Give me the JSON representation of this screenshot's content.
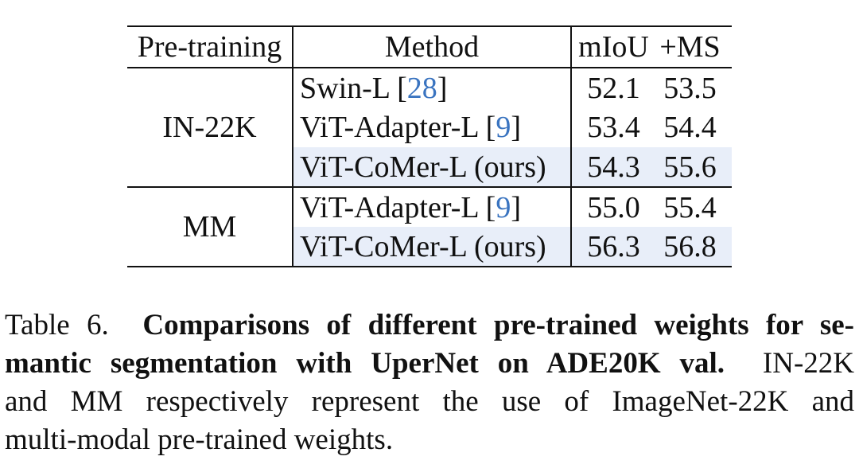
{
  "table": {
    "headers": {
      "pretraining": "Pre-training",
      "method": "Method",
      "miou": "mIoU",
      "ms": "+MS"
    },
    "groups": [
      {
        "pretraining": "IN-22K",
        "rows": [
          {
            "method": "Swin-L [",
            "ref": "28",
            "close": "]",
            "miou": "52.1",
            "ms": "53.5",
            "highlight": false
          },
          {
            "method": "ViT-Adapter-L [",
            "ref": "9",
            "close": "]",
            "miou": "53.4",
            "ms": "54.4",
            "highlight": false
          },
          {
            "method": "ViT-CoMer-L (ours)",
            "miou": "54.3",
            "ms": "55.6",
            "highlight": true
          }
        ]
      },
      {
        "pretraining": "MM",
        "rows": [
          {
            "method": "ViT-Adapter-L [",
            "ref": "9",
            "close": "]",
            "miou": "55.0",
            "ms": "55.4",
            "highlight": false
          },
          {
            "method": "ViT-CoMer-L (ours)",
            "miou": "56.3",
            "ms": "56.8",
            "highlight": true
          }
        ]
      }
    ]
  },
  "caption": {
    "line1_label": "Table 6.",
    "line1_bold": "Comparisons of different pre-trained weights for se-",
    "line2_bold": "mantic segmentation with UperNet on ADE20K val.",
    "line2_rest": "IN-22K",
    "line3": "and MM respectively represent the use of ImageNet-22K and",
    "line4": "multi-modal pre-trained weights."
  },
  "colors": {
    "highlight_row": "#e8eef9",
    "citation_link": "#3a74c0"
  }
}
